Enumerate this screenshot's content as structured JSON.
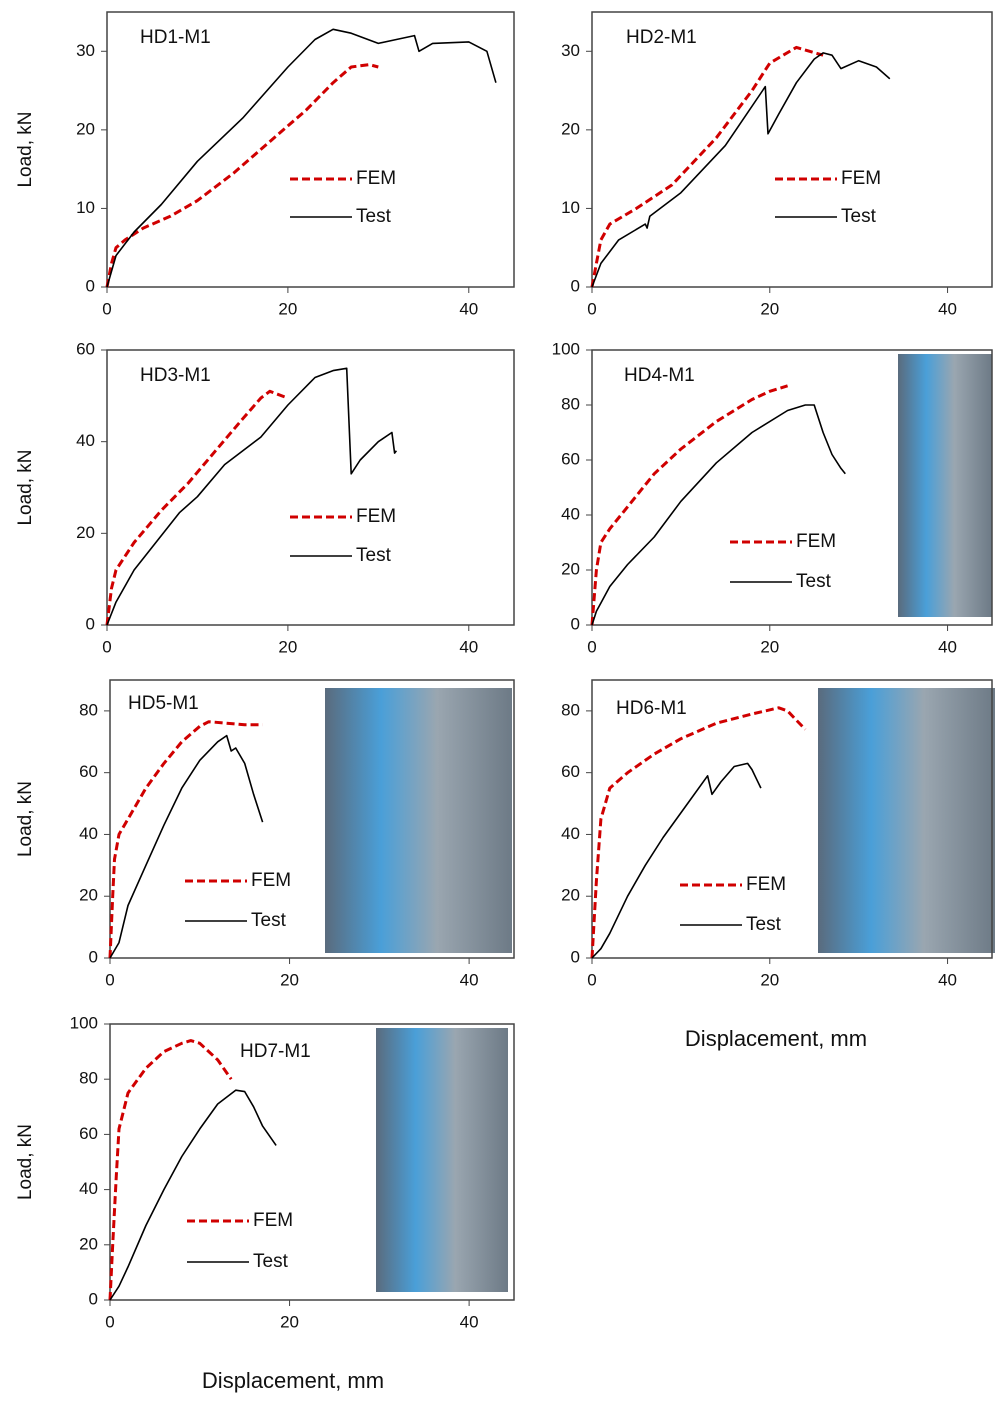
{
  "chart_data": [
    {
      "type": "line",
      "title": "HD1-M1",
      "ylabel": "Load, kN",
      "xlim": [
        0,
        45
      ],
      "ylim": [
        0,
        35
      ],
      "xticks": [
        0,
        20,
        40
      ],
      "yticks": [
        0,
        10,
        20,
        30
      ],
      "series": [
        {
          "name": "FEM",
          "color": "#d00000",
          "dashed": true,
          "x": [
            0,
            0.5,
            1,
            2,
            4,
            7,
            10,
            14,
            18,
            22,
            25,
            27,
            29,
            30
          ],
          "values": [
            0,
            3,
            5,
            6,
            7.5,
            9,
            11,
            14.5,
            18.5,
            22.5,
            26,
            28,
            28.3,
            28
          ]
        },
        {
          "name": "Test",
          "color": "#000000",
          "dashed": false,
          "x": [
            0,
            1,
            3,
            6,
            10,
            15,
            20,
            23,
            25,
            27,
            30,
            32,
            34,
            34.5,
            36,
            40,
            42,
            43
          ],
          "values": [
            0,
            4,
            7,
            10.5,
            16,
            21.5,
            28,
            31.5,
            32.8,
            32.3,
            31,
            31.5,
            32,
            30,
            31,
            31.2,
            30,
            26
          ]
        }
      ]
    },
    {
      "type": "line",
      "title": "HD2-M1",
      "xlim": [
        0,
        45
      ],
      "ylim": [
        0,
        35
      ],
      "xticks": [
        0,
        20,
        40
      ],
      "yticks": [
        0,
        10,
        20,
        30
      ],
      "series": [
        {
          "name": "FEM",
          "color": "#d00000",
          "dashed": true,
          "x": [
            0,
            0.5,
            1,
            2,
            5,
            9,
            14,
            18,
            20,
            23,
            26
          ],
          "values": [
            0,
            3,
            6,
            8,
            10,
            13,
            19,
            25,
            28.5,
            30.5,
            29.5
          ]
        },
        {
          "name": "Test",
          "color": "#000000",
          "dashed": false,
          "x": [
            0,
            1,
            3,
            6,
            6.2,
            6.5,
            10,
            15,
            19.5,
            19.8,
            21,
            23,
            25,
            26,
            27,
            28,
            30,
            32,
            33.5
          ],
          "values": [
            0,
            3,
            6,
            8,
            7.5,
            9,
            12,
            18,
            25.5,
            19.5,
            22,
            26,
            29,
            29.8,
            29.5,
            27.8,
            28.8,
            28,
            26.5
          ]
        }
      ]
    },
    {
      "type": "line",
      "title": "HD3-M1",
      "ylabel": "Load, kN",
      "xlim": [
        0,
        45
      ],
      "ylim": [
        0,
        60
      ],
      "xticks": [
        0,
        20,
        40
      ],
      "yticks": [
        0,
        20,
        40,
        60
      ],
      "series": [
        {
          "name": "FEM",
          "color": "#d00000",
          "dashed": true,
          "x": [
            0,
            0.5,
            1,
            3,
            6,
            9,
            12,
            15,
            17,
            18,
            20
          ],
          "values": [
            0,
            8,
            12,
            18,
            25,
            31,
            38,
            45,
            49.5,
            51,
            49.5
          ]
        },
        {
          "name": "Test",
          "color": "#000000",
          "dashed": false,
          "x": [
            0,
            1,
            3,
            5,
            7,
            8,
            10,
            13,
            17,
            20,
            23,
            25,
            26.5,
            27,
            28,
            30,
            31.5,
            31.8,
            32
          ],
          "values": [
            0,
            5,
            12,
            17,
            22,
            24.5,
            28,
            35,
            41,
            48,
            54,
            55.5,
            56,
            33,
            36,
            40,
            42,
            37.5,
            38
          ]
        }
      ]
    },
    {
      "type": "line",
      "title": "HD4-M1",
      "xlim": [
        0,
        45
      ],
      "ylim": [
        0,
        100
      ],
      "xticks": [
        0,
        20,
        40
      ],
      "yticks": [
        0,
        20,
        40,
        60,
        80,
        100
      ],
      "series": [
        {
          "name": "FEM",
          "color": "#d00000",
          "dashed": true,
          "x": [
            0,
            0.5,
            1,
            2,
            4,
            7,
            10,
            14,
            18,
            20,
            22
          ],
          "values": [
            0,
            20,
            30,
            35,
            43,
            55,
            64,
            74,
            82,
            85,
            87
          ]
        },
        {
          "name": "Test",
          "color": "#000000",
          "dashed": false,
          "x": [
            0,
            0.5,
            1,
            2,
            4,
            7,
            10,
            14,
            18,
            22,
            24,
            25,
            26,
            27,
            28,
            28.5
          ],
          "values": [
            0,
            5,
            8,
            14,
            22,
            32,
            45,
            59,
            70,
            78,
            80,
            80,
            70,
            62,
            57,
            55
          ]
        }
      ]
    },
    {
      "type": "line",
      "title": "HD5-M1",
      "ylabel": "Load, kN",
      "xlim": [
        0,
        45
      ],
      "ylim": [
        0,
        90
      ],
      "xticks": [
        0,
        20,
        40
      ],
      "yticks": [
        0,
        20,
        40,
        60,
        80
      ],
      "series": [
        {
          "name": "FEM",
          "color": "#d00000",
          "dashed": true,
          "x": [
            0,
            0.3,
            0.5,
            1,
            2,
            4,
            6,
            8,
            10,
            11,
            13,
            15,
            17
          ],
          "values": [
            0,
            20,
            32,
            40,
            45,
            55,
            63,
            70,
            75,
            76.5,
            76,
            75.5,
            75.5
          ]
        },
        {
          "name": "Test",
          "color": "#000000",
          "dashed": false,
          "x": [
            0,
            1,
            2,
            4,
            6,
            8,
            10,
            12,
            13,
            13.5,
            14,
            15,
            16,
            17
          ],
          "values": [
            0,
            5,
            17,
            30,
            43,
            55,
            64,
            70,
            72,
            67,
            68,
            63,
            53,
            44
          ]
        }
      ]
    },
    {
      "type": "line",
      "title": "HD6-M1",
      "xlabel": "Displacement, mm",
      "xlim": [
        0,
        45
      ],
      "ylim": [
        0,
        90
      ],
      "xticks": [
        0,
        20,
        40
      ],
      "yticks": [
        0,
        20,
        40,
        60,
        80
      ],
      "series": [
        {
          "name": "FEM",
          "color": "#d00000",
          "dashed": true,
          "x": [
            0,
            0.5,
            1,
            2,
            4,
            7,
            10,
            14,
            18,
            21,
            22,
            23,
            24
          ],
          "values": [
            0,
            25,
            45,
            55,
            60,
            66,
            71,
            76,
            79,
            81,
            80,
            77,
            74
          ]
        },
        {
          "name": "Test",
          "color": "#000000",
          "dashed": false,
          "x": [
            0,
            1,
            2,
            4,
            6,
            8,
            11,
            13,
            13.5,
            14.5,
            16,
            17.5,
            18,
            18.5,
            19
          ],
          "values": [
            0,
            3,
            8,
            20,
            30,
            39,
            51,
            59,
            53,
            57,
            62,
            63,
            61,
            58,
            55
          ]
        }
      ]
    },
    {
      "type": "line",
      "title": "HD7-M1",
      "ylabel": "Load, kN",
      "xlabel": "Displacement, mm",
      "xlim": [
        0,
        45
      ],
      "ylim": [
        0,
        100
      ],
      "xticks": [
        0,
        20,
        40
      ],
      "yticks": [
        0,
        20,
        40,
        60,
        80,
        100
      ],
      "series": [
        {
          "name": "FEM",
          "color": "#d00000",
          "dashed": true,
          "x": [
            0,
            0.3,
            0.7,
            1,
            2,
            4,
            6,
            8,
            9,
            10,
            12,
            13.5
          ],
          "values": [
            0,
            20,
            45,
            62,
            75,
            84,
            90,
            93,
            94,
            93,
            87,
            80
          ]
        },
        {
          "name": "Test",
          "color": "#000000",
          "dashed": false,
          "x": [
            0,
            1,
            2,
            4,
            6,
            8,
            10,
            12,
            14,
            15,
            16,
            17,
            18.5
          ],
          "values": [
            0,
            5,
            12,
            27,
            40,
            52,
            62,
            71,
            76,
            75.5,
            70,
            63,
            56
          ]
        }
      ]
    }
  ]
}
